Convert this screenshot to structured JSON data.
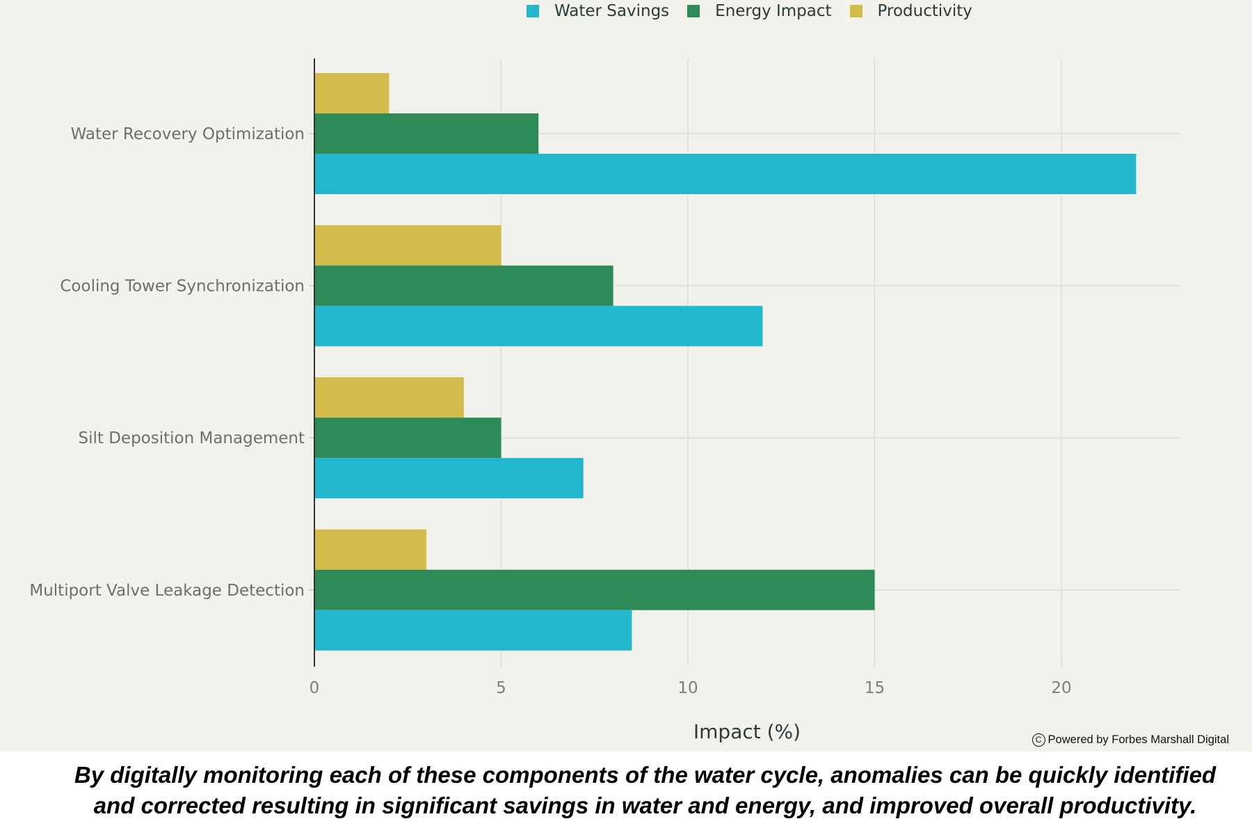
{
  "chart_data": {
    "type": "bar",
    "orientation": "horizontal",
    "title": "",
    "categories": [
      "Water Recovery Optimization",
      "Cooling Tower Synchronization",
      "Silt Deposition Management",
      "Multiport Valve Leakage Detection"
    ],
    "series": [
      {
        "name": "Water Savings",
        "color": "#22b7cd",
        "values": [
          22,
          12,
          7.2,
          8.5
        ]
      },
      {
        "name": "Energy Impact",
        "color": "#2e8a57",
        "values": [
          6,
          8,
          5,
          15
        ]
      },
      {
        "name": "Productivity",
        "color": "#d4bc4c",
        "values": [
          2,
          5,
          4,
          3
        ]
      }
    ],
    "xlabel": "Impact (%)",
    "ylabel": "",
    "xlim": [
      0,
      23.2
    ],
    "xticks": [
      0,
      5,
      10,
      15,
      20
    ],
    "xtick_labels": [
      "0",
      "5",
      "10",
      "15",
      "20"
    ],
    "grid": true,
    "legend_position": "top-center"
  },
  "legend": {
    "items": [
      {
        "label": "Water Savings",
        "color": "#22b7cd"
      },
      {
        "label": "Energy Impact",
        "color": "#2e8a57"
      },
      {
        "label": "Productivity",
        "color": "#d4bc4c"
      }
    ]
  },
  "watermark": {
    "icon": "copyright-icon",
    "symbol": "C",
    "text": "Powered by Forbes Marshall Digital"
  },
  "caption": {
    "line1": "By digitally monitoring each of these components of the water cycle, anomalies can be quickly identified",
    "line2": "and corrected resulting in significant savings in water and energy, and improved overall productivity."
  },
  "colors": {
    "background": "#f2f2ed",
    "gridline": "#dcdcd6",
    "axis": "#333333",
    "label_text": "#6b6f6f"
  }
}
